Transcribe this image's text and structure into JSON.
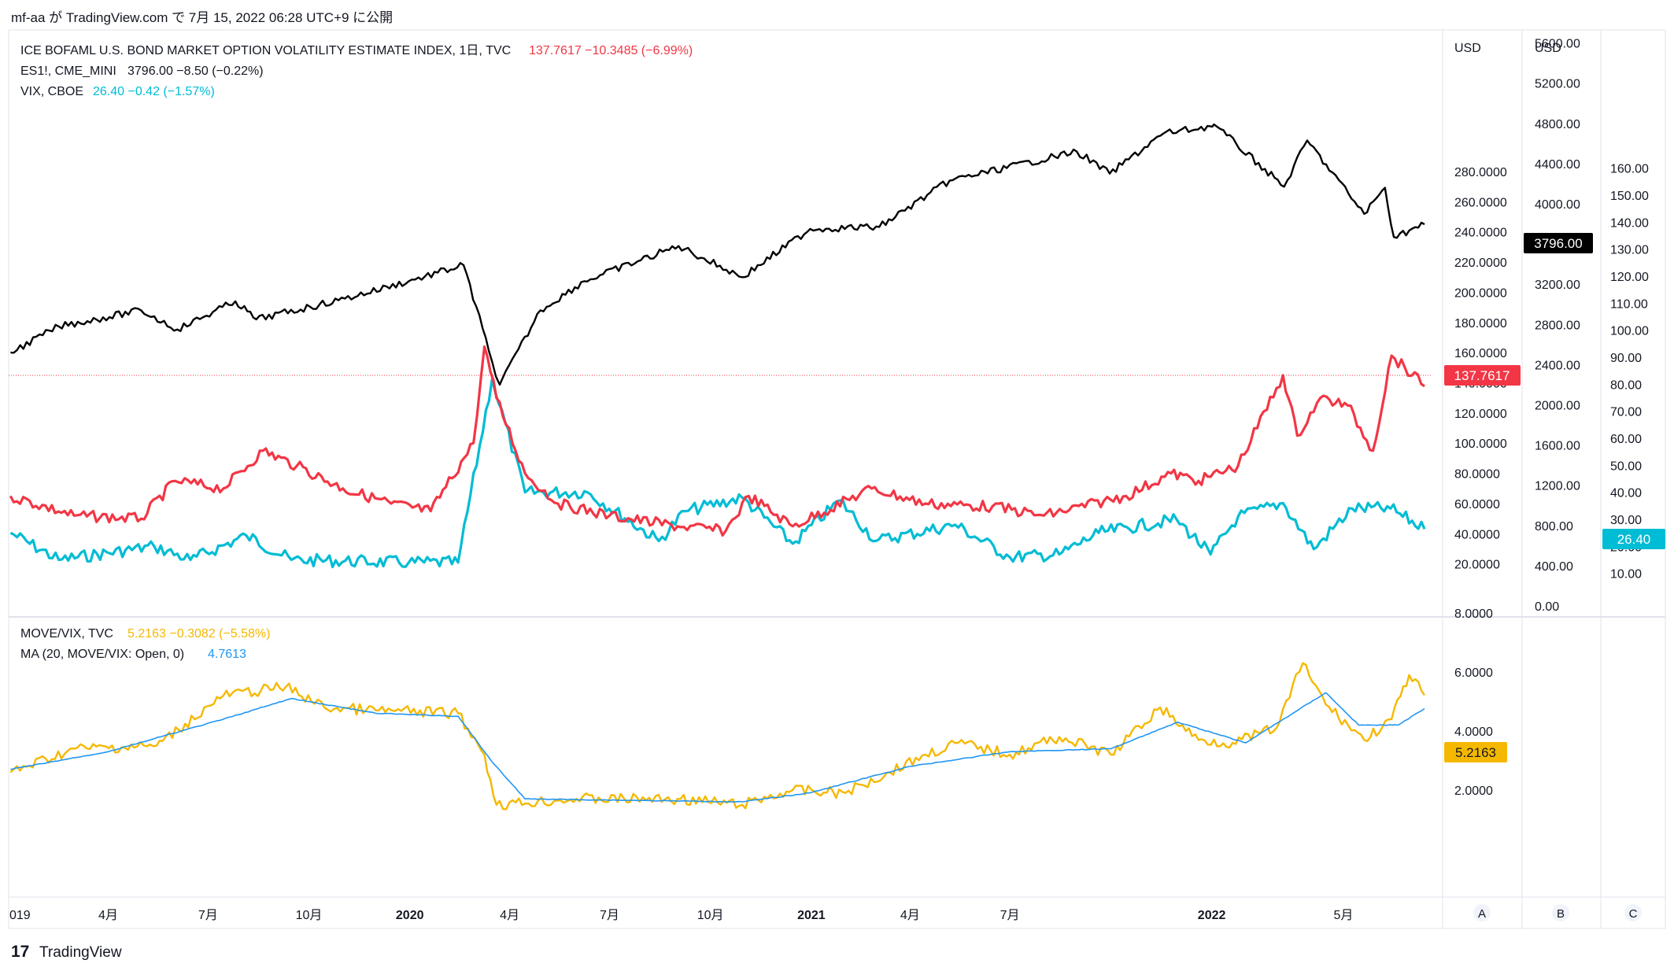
{
  "header": {
    "publish_line": "mf-aa が TradingView.com で 7月 15, 2022 06:28 UTC+9 に公開"
  },
  "footer": {
    "brand": "TradingView",
    "logo_glyph": "17"
  },
  "legend_top": [
    {
      "name": "ICE BOFAML U.S. BOND MARKET OPTION VOLATILITY ESTIMATE INDEX, 1日, TVC",
      "values": "137.7617  −10.3485 (−6.99%)",
      "color": "#f23645"
    },
    {
      "name": "ES1!, CME_MINI",
      "values": "3796.00  −8.50 (−0.22%)",
      "color": "#131722"
    },
    {
      "name": "VIX, CBOE",
      "values": "26.40  −0.42 (−1.57%)",
      "color": "#00bcd4"
    }
  ],
  "legend_bottom": [
    {
      "name": "MOVE/VIX, TVC",
      "values": "5.2163  −0.3082 (−5.58%)",
      "color": "#f5b800"
    },
    {
      "name": "MA (20, MOVE/VIX: Open, 0)",
      "values": "4.7613",
      "color": "#2196f3"
    }
  ],
  "axes": {
    "move_axis": {
      "unit": "USD",
      "ticks": [
        "280.0000",
        "260.0000",
        "240.0000",
        "220.0000",
        "200.0000",
        "180.0000",
        "160.0000",
        "140.0000",
        "120.0000",
        "100.0000",
        "80.0000",
        "60.0000",
        "40.0000",
        "20.0000"
      ]
    },
    "es_axis": {
      "unit": "USD",
      "ticks": [
        "5600.00",
        "5200.00",
        "4800.00",
        "4400.00",
        "4000.00",
        "3600.00",
        "3200.00",
        "2800.00",
        "2400.00",
        "2000.00",
        "1600.00",
        "1200.00",
        "800.00",
        "400.00",
        "0.00"
      ]
    },
    "vix_axis": {
      "ticks": [
        "160.00",
        "150.00",
        "140.00",
        "130.00",
        "120.00",
        "110.00",
        "100.00",
        "90.00",
        "80.00",
        "70.00",
        "60.00",
        "50.00",
        "40.00",
        "30.00",
        "20.00",
        "10.00"
      ]
    },
    "ratio_axis": {
      "ticks": [
        "8.0000",
        "6.0000",
        "4.0000",
        "2.0000"
      ]
    },
    "time_axis": [
      "019",
      "4月",
      "7月",
      "10月",
      "2020",
      "4月",
      "7月",
      "10月",
      "2021",
      "4月",
      "7月",
      "2022",
      "5月"
    ],
    "scale_buttons": [
      "A",
      "B",
      "C"
    ]
  },
  "price_labels": {
    "es": {
      "text": "3796.00",
      "color": "#000000"
    },
    "move": {
      "text": "137.7617",
      "color": "#f23645"
    },
    "vix": {
      "text": "26.40",
      "color": "#00bcd4"
    },
    "ratio": {
      "text": "5.2163",
      "color": "#f5b800"
    }
  },
  "chart_data": {
    "type": "line",
    "x_range": [
      "2019-01-01",
      "2022-07-14"
    ],
    "panes": [
      {
        "name": "main",
        "series": [
          {
            "name": "ES1!, CME_MINI",
            "axis": "USD (ES)",
            "color": "#000000",
            "points": [
              [
                "2019-01-02",
                2520
              ],
              [
                "2019-02-15",
                2780
              ],
              [
                "2019-05-01",
                2940
              ],
              [
                "2019-06-03",
                2750
              ],
              [
                "2019-07-26",
                3030
              ],
              [
                "2019-08-14",
                2850
              ],
              [
                "2019-10-28",
                3040
              ],
              [
                "2019-12-31",
                3230
              ],
              [
                "2020-02-19",
                3390
              ],
              [
                "2020-03-16",
                2430
              ],
              [
                "2020-03-23",
                2200
              ],
              [
                "2020-04-29",
                2940
              ],
              [
                "2020-06-08",
                3230
              ],
              [
                "2020-09-02",
                3580
              ],
              [
                "2020-10-30",
                3270
              ],
              [
                "2020-12-31",
                3750
              ],
              [
                "2021-03-04",
                3770
              ],
              [
                "2021-05-07",
                4230
              ],
              [
                "2021-08-31",
                4520
              ],
              [
                "2021-09-30",
                4300
              ],
              [
                "2021-11-18",
                4700
              ],
              [
                "2021-12-31",
                4770
              ],
              [
                "2022-01-03",
                4790
              ],
              [
                "2022-03-08",
                4170
              ],
              [
                "2022-03-29",
                4630
              ],
              [
                "2022-05-20",
                3900
              ],
              [
                "2022-06-08",
                4160
              ],
              [
                "2022-06-16",
                3670
              ],
              [
                "2022-07-14",
                3796
              ]
            ]
          },
          {
            "name": "MOVE",
            "axis": "USD (MOVE)",
            "color": "#f23645",
            "points": [
              [
                "2019-01-02",
                65
              ],
              [
                "2019-03-01",
                52
              ],
              [
                "2019-05-01",
                50
              ],
              [
                "2019-06-01",
                75
              ],
              [
                "2019-07-15",
                70
              ],
              [
                "2019-08-20",
                95
              ],
              [
                "2019-09-20",
                85
              ],
              [
                "2019-11-01",
                70
              ],
              [
                "2019-12-15",
                60
              ],
              [
                "2020-01-20",
                55
              ],
              [
                "2020-02-28",
                100
              ],
              [
                "2020-03-09",
                164
              ],
              [
                "2020-03-20",
                130
              ],
              [
                "2020-04-15",
                80
              ],
              [
                "2020-05-15",
                60
              ],
              [
                "2020-07-01",
                52
              ],
              [
                "2020-09-01",
                45
              ],
              [
                "2020-10-15",
                42
              ],
              [
                "2020-11-05",
                65
              ],
              [
                "2020-12-15",
                45
              ],
              [
                "2021-02-25",
                70
              ],
              [
                "2021-04-15",
                60
              ],
              [
                "2021-06-15",
                58
              ],
              [
                "2021-08-01",
                52
              ],
              [
                "2021-10-15",
                65
              ],
              [
                "2021-11-25",
                80
              ],
              [
                "2021-12-20",
                75
              ],
              [
                "2022-01-25",
                85
              ],
              [
                "2022-03-07",
                145
              ],
              [
                "2022-03-20",
                105
              ],
              [
                "2022-04-10",
                130
              ],
              [
                "2022-05-05",
                125
              ],
              [
                "2022-05-28",
                95
              ],
              [
                "2022-06-14",
                158
              ],
              [
                "2022-07-14",
                137.7617
              ]
            ]
          },
          {
            "name": "VIX, CBOE",
            "axis": "VIX",
            "color": "#00bcd4",
            "points": [
              [
                "2019-01-02",
                25
              ],
              [
                "2019-02-15",
                15
              ],
              [
                "2019-05-13",
                20
              ],
              [
                "2019-06-15",
                15
              ],
              [
                "2019-08-05",
                24
              ],
              [
                "2019-09-15",
                15
              ],
              [
                "2019-12-31",
                14
              ],
              [
                "2020-02-14",
                14
              ],
              [
                "2020-03-16",
                82
              ],
              [
                "2020-04-15",
                40
              ],
              [
                "2020-06-11",
                40
              ],
              [
                "2020-08-15",
                22
              ],
              [
                "2020-09-08",
                33
              ],
              [
                "2020-10-30",
                38
              ],
              [
                "2020-12-15",
                21
              ],
              [
                "2021-01-27",
                37
              ],
              [
                "2021-03-01",
                22
              ],
              [
                "2021-05-12",
                28
              ],
              [
                "2021-07-01",
                16
              ],
              [
                "2021-08-15",
                17
              ],
              [
                "2021-09-20",
                25
              ],
              [
                "2021-11-30",
                30
              ],
              [
                "2021-12-31",
                17
              ],
              [
                "2022-01-25",
                31
              ],
              [
                "2022-03-07",
                36
              ],
              [
                "2022-04-04",
                19
              ],
              [
                "2022-05-09",
                34
              ],
              [
                "2022-06-13",
                34
              ],
              [
                "2022-07-14",
                26.4
              ]
            ]
          }
        ]
      },
      {
        "name": "ratio",
        "series": [
          {
            "name": "MOVE/VIX, TVC",
            "color": "#f5b800",
            "points": [
              [
                "2019-01-02",
                2.6
              ],
              [
                "2019-03-01",
                3.4
              ],
              [
                "2019-05-15",
                3.5
              ],
              [
                "2019-07-15",
                5.2
              ],
              [
                "2019-09-10",
                5.5
              ],
              [
                "2019-10-15",
                4.8
              ],
              [
                "2019-12-01",
                4.7
              ],
              [
                "2020-02-14",
                4.6
              ],
              [
                "2020-03-09",
                3.2
              ],
              [
                "2020-03-20",
                1.5
              ],
              [
                "2020-06-01",
                1.7
              ],
              [
                "2020-09-01",
                1.7
              ],
              [
                "2020-10-30",
                1.5
              ],
              [
                "2020-12-15",
                2.0
              ],
              [
                "2021-02-01",
                1.9
              ],
              [
                "2021-04-15",
                3.2
              ],
              [
                "2021-05-15",
                3.6
              ],
              [
                "2021-07-01",
                3.2
              ],
              [
                "2021-08-15",
                3.8
              ],
              [
                "2021-10-01",
                3.2
              ],
              [
                "2021-11-15",
                4.8
              ],
              [
                "2021-12-20",
                3.7
              ],
              [
                "2022-01-20",
                3.6
              ],
              [
                "2022-03-01",
                4.1
              ],
              [
                "2022-03-25",
                6.3
              ],
              [
                "2022-04-15",
                4.9
              ],
              [
                "2022-05-20",
                3.7
              ],
              [
                "2022-06-14",
                4.4
              ],
              [
                "2022-06-30",
                5.9
              ],
              [
                "2022-07-14",
                5.2163
              ]
            ]
          },
          {
            "name": "MA (20, MOVE/VIX: Open, 0)",
            "color": "#2196f3",
            "points": [
              [
                "2019-01-02",
                2.7
              ],
              [
                "2019-04-01",
                3.3
              ],
              [
                "2019-07-15",
                4.4
              ],
              [
                "2019-09-15",
                5.1
              ],
              [
                "2019-12-01",
                4.6
              ],
              [
                "2020-02-14",
                4.5
              ],
              [
                "2020-03-15",
                3.0
              ],
              [
                "2020-04-15",
                1.7
              ],
              [
                "2020-10-30",
                1.6
              ],
              [
                "2020-12-30",
                1.9
              ],
              [
                "2021-04-01",
                2.8
              ],
              [
                "2021-07-01",
                3.3
              ],
              [
                "2021-10-01",
                3.4
              ],
              [
                "2021-12-01",
                4.3
              ],
              [
                "2022-02-01",
                3.6
              ],
              [
                "2022-04-15",
                5.3
              ],
              [
                "2022-05-15",
                4.2
              ],
              [
                "2022-06-20",
                4.2
              ],
              [
                "2022-07-14",
                4.7613
              ]
            ]
          }
        ]
      }
    ]
  }
}
